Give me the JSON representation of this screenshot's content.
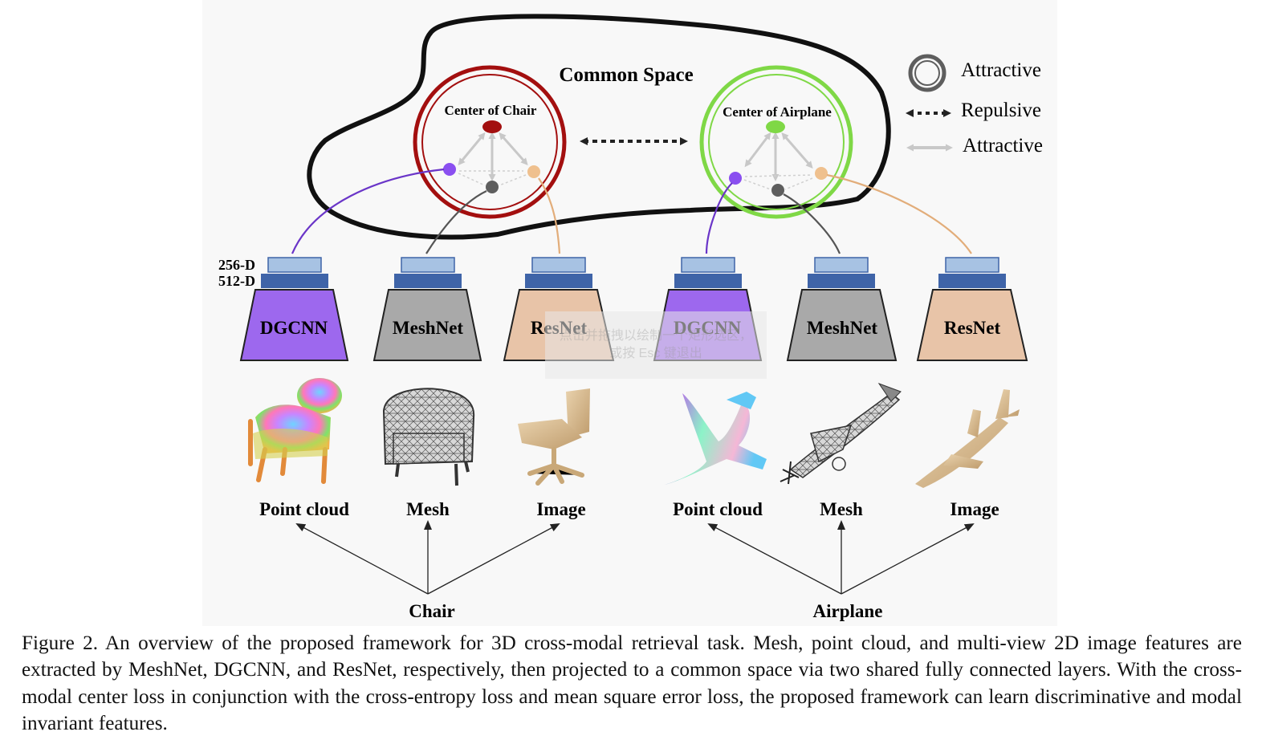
{
  "common_space_label": "Common Space",
  "legend": {
    "ring_label": "Attractive",
    "dashed_label": "Repulsive",
    "arrow_label": "Attractive"
  },
  "chair_center_label": "Center of Chair",
  "airplane_center_label": "Center of Airplane",
  "dim_labels": {
    "d256": "256-D",
    "d512": "512-D"
  },
  "networks": {
    "dgcnn": "DGCNN",
    "meshnet": "MeshNet",
    "resnet": "ResNet"
  },
  "modalities": {
    "point_cloud": "Point cloud",
    "mesh": "Mesh",
    "image": "Image"
  },
  "categories": {
    "chair": "Chair",
    "airplane": "Airplane"
  },
  "overlay_hint": {
    "line1": "点击并拖拽以绘制一个矩形选区，",
    "line2": "或按 Esc 键退出"
  },
  "caption": "Figure 2. An overview of the proposed framework for 3D cross-modal retrieval task. Mesh, point cloud, and multi-view 2D image features are extracted by MeshNet, DGCNN, and ResNet, respectively, then projected to a common space via two shared fully connected layers. With the cross-modal center loss in conjunction with the cross-entropy loss and mean square error loss, the proposed framework can learn discriminative and modal invariant features.",
  "colors": {
    "chair_center": "#a30f0f",
    "airplane_center": "#7fd846",
    "point_modality": "#8a4ff0",
    "mesh_modality": "#5e5e5e",
    "image_modality": "#efc08e",
    "dgcnn_fill": "#9d68ee",
    "meshnet_fill": "#a9a9a9",
    "resnet_fill": "#e8c4a8",
    "fc256_fill": "#a7c2e3",
    "fc512_fill": "#3f64a8"
  }
}
